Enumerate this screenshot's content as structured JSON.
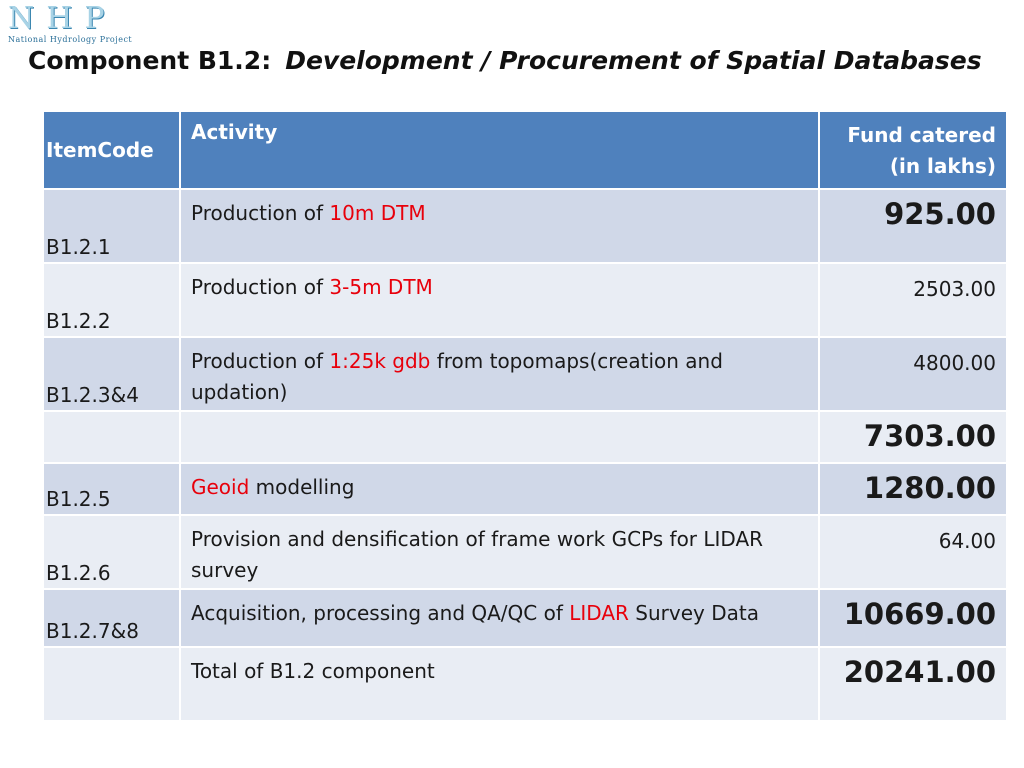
{
  "logo": {
    "letters": [
      "N",
      "H",
      "P"
    ],
    "subtitle": "National Hydrology Project"
  },
  "title": {
    "label": "Component  B1.2:",
    "text": "Development / Procurement of Spatial Databases"
  },
  "table": {
    "headers": {
      "code": "ItemCode",
      "activity": "Activity",
      "fund_line1": "Fund catered",
      "fund_line2": "(in lakhs)"
    },
    "rows": [
      {
        "code": "B1.2.1",
        "act_pre": "Production of ",
        "act_red": "10m DTM",
        "act_post": "",
        "fund": "925.00",
        "bold": true
      },
      {
        "code": "B1.2.2",
        "act_pre": "Production of ",
        "act_red": "3-5m DTM",
        "act_post": "",
        "fund": "2503.00",
        "bold": false
      },
      {
        "code": "B1.2.3&4",
        "act_pre": "Production of ",
        "act_red": "1:25k gdb",
        "act_post": " from topomaps(creation and updation)",
        "fund": "4800.00",
        "bold": false
      },
      {
        "code": "",
        "act_pre": "",
        "act_red": "",
        "act_post": "",
        "fund": "7303.00",
        "bold": true
      },
      {
        "code": "B1.2.5",
        "act_pre": "",
        "act_red": "Geoid",
        "act_post": " modelling",
        "fund": "1280.00",
        "bold": true
      },
      {
        "code": "B1.2.6",
        "act_pre": "Provision and densification of frame work GCPs for LIDAR survey",
        "act_red": "",
        "act_post": "",
        "fund": "64.00",
        "bold": false
      },
      {
        "code": "B1.2.7&8",
        "act_pre": "Acquisition, processing and QA/QC of  ",
        "act_red": "LIDAR",
        "act_post": " Survey Data",
        "fund": "10669.00",
        "bold": true
      },
      {
        "code": "",
        "act_pre": "Total of B1.2 component",
        "act_red": "",
        "act_post": "",
        "fund": "20241.00",
        "bold": true
      }
    ]
  },
  "colors": {
    "header_bg": "#4f81bd",
    "row_dark": "#d0d8e8",
    "row_light": "#e9edf4",
    "highlight_red": "#e8000b"
  }
}
